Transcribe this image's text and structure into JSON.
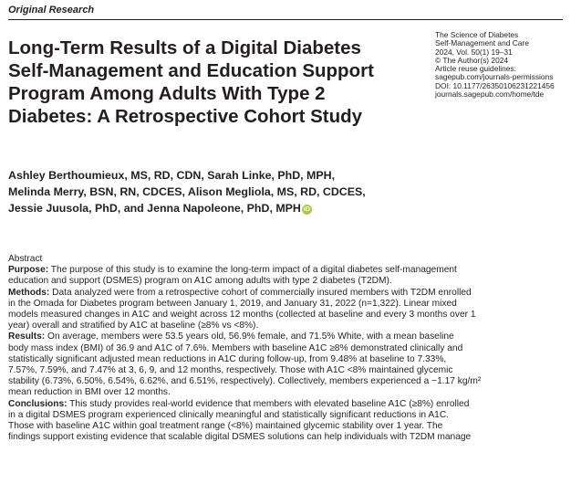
{
  "header": {
    "section_label": "Original Research"
  },
  "title_lines": [
    "Long-Term Results of a Digital Diabetes",
    "Self-Management and Education Support",
    "Program Among Adults With Type 2",
    "Diabetes: A Retrospective Cohort Study"
  ],
  "journal_meta": [
    "The Science of Diabetes",
    "Self-Management and Care",
    "2024, Vol. 50(1) 19–31",
    "© The Author(s) 2024",
    "Article reuse guidelines:",
    "sagepub.com/journals-permissions",
    "DOI: 10.1177/26350106231221456",
    "journals.sagepub.com/home/tde"
  ],
  "authors": {
    "lines": [
      "Ashley Berthoumieux, MS, RD, CDN, Sarah Linke, PhD, MPH,",
      "Melinda Merry, BSN, RN, CDCES, Alison Megliola, MS, RD, CDCES,",
      "Jessie Juusola, PhD, and Jenna Napoleone, PhD, MPH"
    ],
    "orcid_glyph": "iD"
  },
  "abstract": {
    "heading": "Abstract",
    "purpose": {
      "label": "Purpose:",
      "lines": [
        " The purpose of this study is to examine the long-term impact of a digital diabetes self-management",
        "education and support (DSMES) program on A1C among adults with type 2 diabetes (T2DM)."
      ]
    },
    "methods": {
      "label": "Methods:",
      "lines": [
        " Data analyzed were from a retrospective cohort of commercially insured members with T2DM enrolled",
        "in the Omada for Diabetes program between January 1, 2019, and January 31, 2022 (n=1,322). Linear mixed",
        "models measured changes in A1C and weight across 12 months (collected at baseline and every 3 months over 1",
        "year) overall and stratified by A1C at baseline (≥8% vs <8%)."
      ]
    },
    "results": {
      "label": "Results:",
      "lines": [
        " On average, members were 53.5 years old, 56.9% female, and 71.5% White, with a mean baseline",
        "body mass index (BMI) of 36.9 and A1C of 7.6%. Members with baseline A1C ≥8% demonstrated clinically and",
        "statistically significant adjusted mean reductions in A1C during follow-up, from 9.48% at baseline to 7.33%,",
        "7.57%, 7.59%, and 7.47% at 3, 6, 9, and 12 months, respectively. Those with A1C <8% maintained glycemic",
        "stability (6.73%, 6.50%, 6.54%, 6.62%, and 6.51%, respectively). Collectively, members experienced a −1.17 kg/m²",
        "mean reduction in BMI over 12 months."
      ]
    },
    "conclusions": {
      "label": "Conclusions:",
      "lines": [
        " This study provides real-world evidence that members with elevated baseline A1C (≥8%) enrolled",
        "in a digital DSMES program experienced clinically meaningful and statistically significant reductions in A1C.",
        "Those with baseline A1C within goal treatment range (<8%) maintained glycemic stability over 1 year. The",
        "findings support existing evidence that scalable digital DSMES solutions can help individuals with T2DM manage"
      ]
    }
  }
}
